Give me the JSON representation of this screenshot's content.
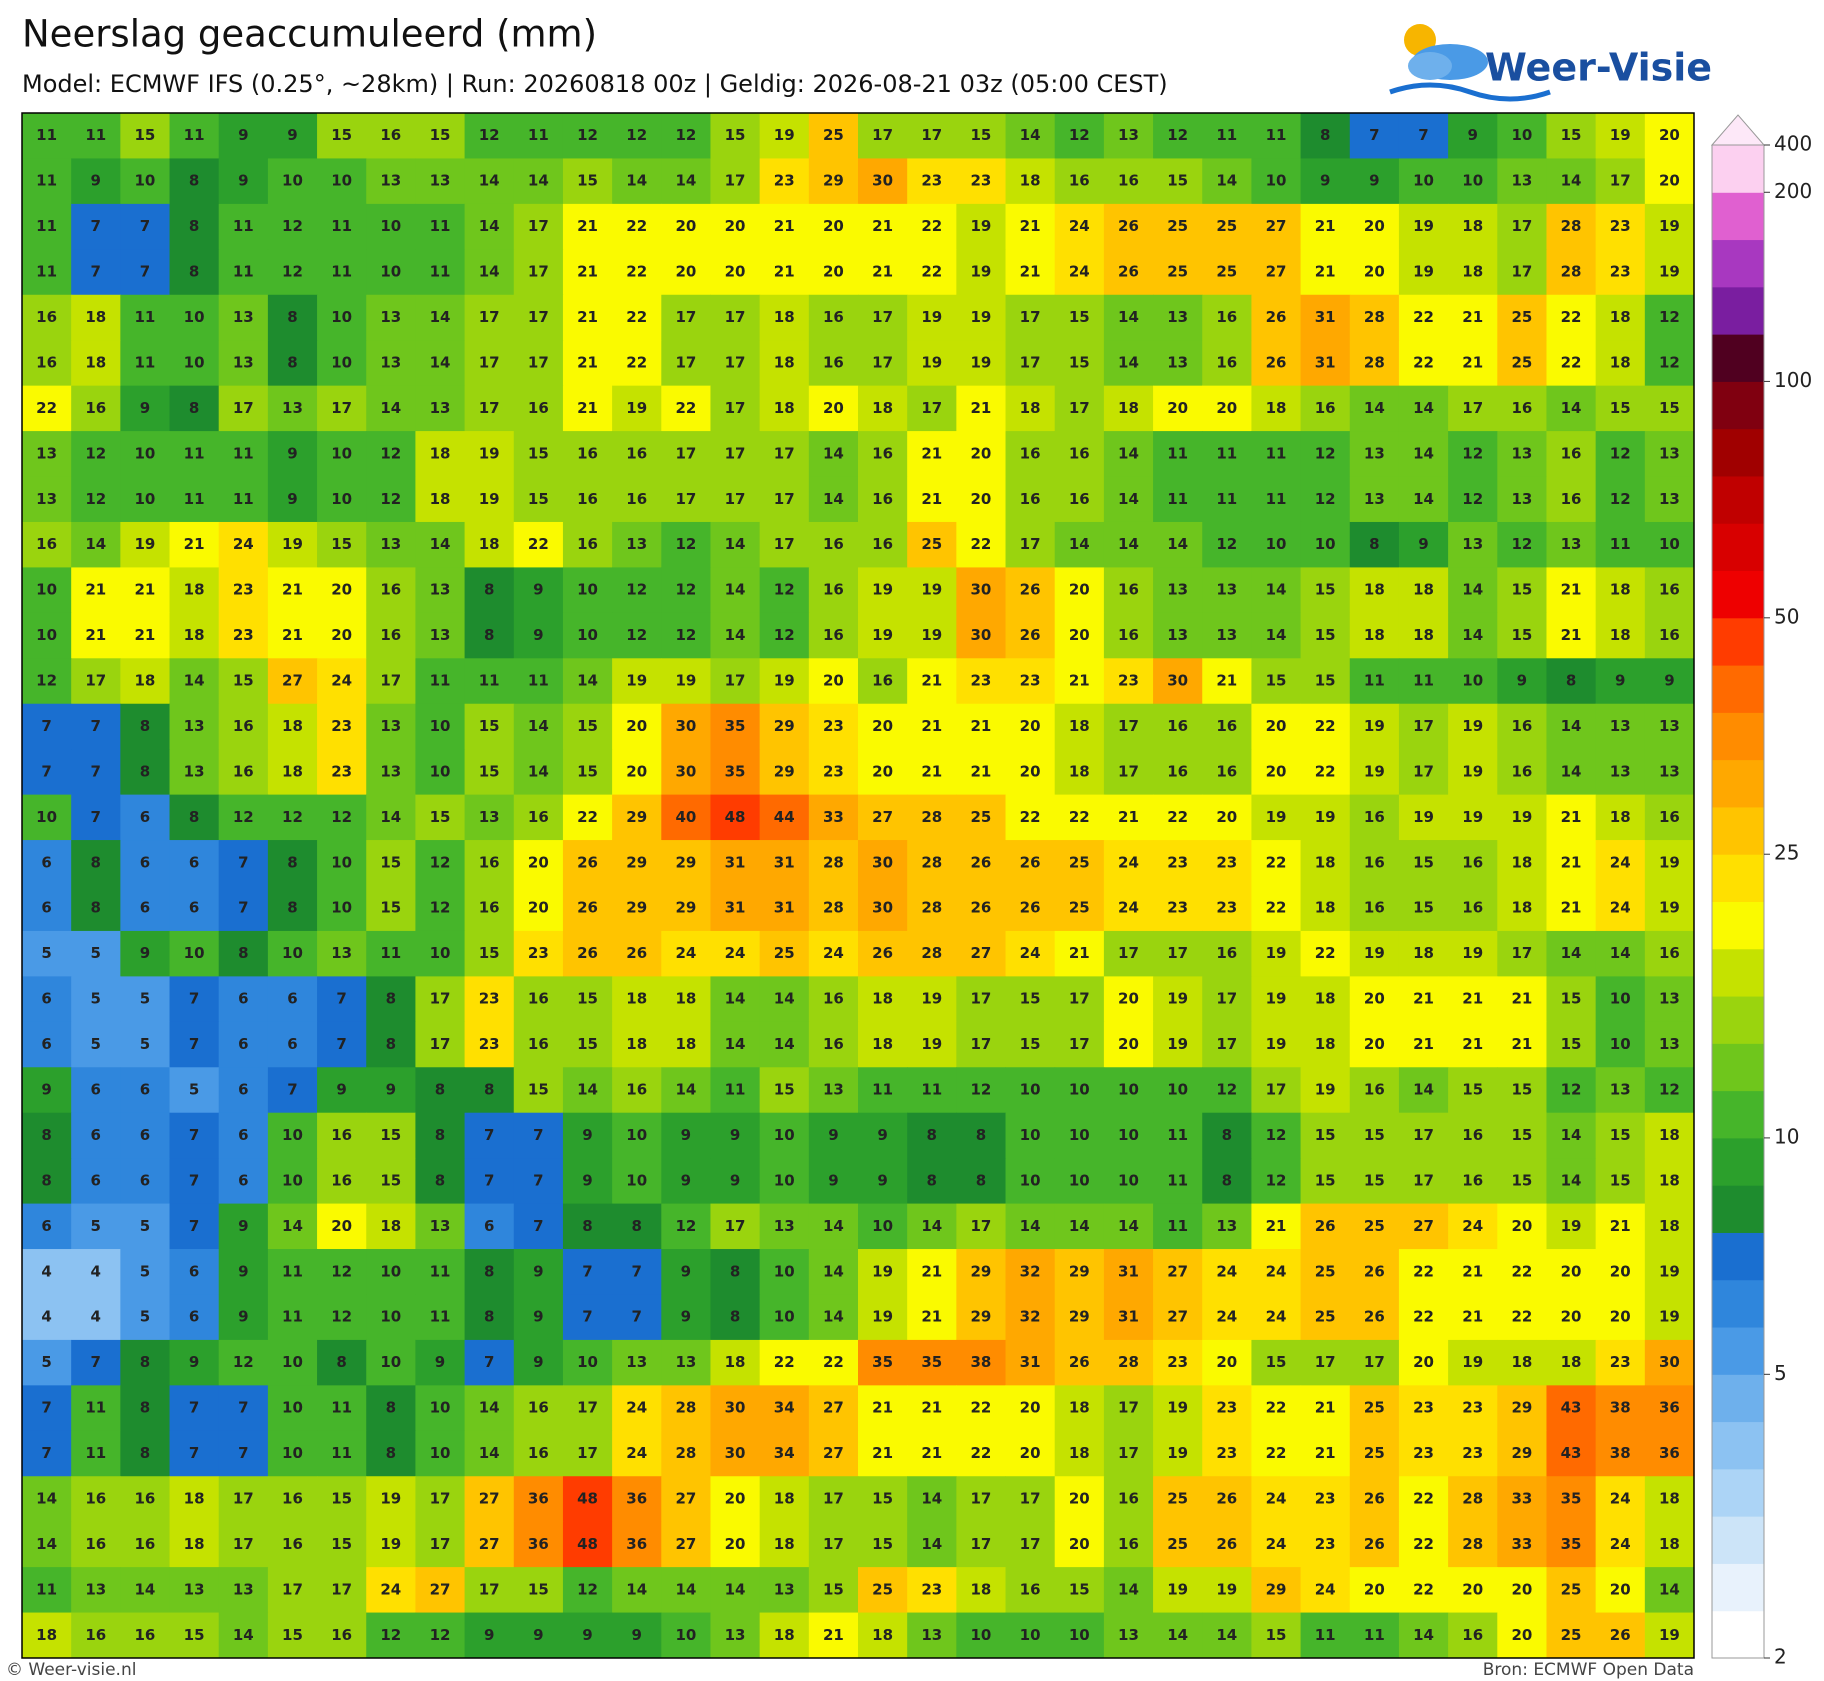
{
  "header": {
    "title": "Neerslag geaccumuleerd (mm)",
    "subtitle": "Model: ECMWF IFS (0.25°, ~28km)  |  Run: 20260818 00z  |  Geldig: 2026-08-21 03z (05:00 CEST)",
    "logo": "Weer-Visie"
  },
  "grid": {
    "rows": [
      [
        11,
        11,
        15,
        11,
        9,
        9,
        15,
        16,
        15,
        12,
        11,
        12,
        12,
        12,
        15,
        19,
        25,
        17,
        17,
        15,
        14,
        12,
        13,
        12,
        11,
        11,
        8,
        7,
        7,
        9,
        10,
        15,
        19,
        20
      ],
      [
        11,
        9,
        10,
        8,
        9,
        10,
        10,
        13,
        13,
        14,
        14,
        15,
        14,
        14,
        17,
        23,
        29,
        30,
        23,
        23,
        18,
        16,
        16,
        15,
        14,
        10,
        9,
        9,
        10,
        10,
        13,
        14,
        17,
        20
      ],
      [
        11,
        7,
        7,
        8,
        11,
        12,
        11,
        10,
        11,
        14,
        17,
        21,
        22,
        20,
        20,
        21,
        20,
        21,
        22,
        19,
        21,
        24,
        26,
        25,
        25,
        27,
        21,
        20,
        19,
        18,
        17,
        28,
        23,
        19
      ],
      [
        11,
        7,
        7,
        8,
        11,
        12,
        11,
        10,
        11,
        14,
        17,
        21,
        22,
        20,
        20,
        21,
        20,
        21,
        22,
        19,
        21,
        24,
        26,
        25,
        25,
        27,
        21,
        20,
        19,
        18,
        17,
        28,
        23,
        19
      ],
      [
        16,
        18,
        11,
        10,
        13,
        8,
        10,
        13,
        14,
        17,
        17,
        21,
        22,
        17,
        17,
        18,
        16,
        17,
        19,
        19,
        17,
        15,
        14,
        13,
        16,
        26,
        31,
        28,
        22,
        21,
        25,
        22,
        18,
        12
      ],
      [
        16,
        18,
        11,
        10,
        13,
        8,
        10,
        13,
        14,
        17,
        17,
        21,
        22,
        17,
        17,
        18,
        16,
        17,
        19,
        19,
        17,
        15,
        14,
        13,
        16,
        26,
        31,
        28,
        22,
        21,
        25,
        22,
        18,
        12
      ],
      [
        22,
        16,
        9,
        8,
        17,
        13,
        17,
        14,
        13,
        17,
        16,
        21,
        19,
        22,
        17,
        18,
        20,
        18,
        17,
        21,
        18,
        17,
        18,
        20,
        20,
        18,
        16,
        14,
        14,
        17,
        16,
        14,
        15,
        15
      ],
      [
        13,
        12,
        10,
        11,
        11,
        9,
        10,
        12,
        18,
        19,
        15,
        16,
        16,
        17,
        17,
        17,
        14,
        16,
        21,
        20,
        16,
        16,
        14,
        11,
        11,
        11,
        12,
        13,
        14,
        12,
        13,
        16,
        12,
        13
      ],
      [
        13,
        12,
        10,
        11,
        11,
        9,
        10,
        12,
        18,
        19,
        15,
        16,
        16,
        17,
        17,
        17,
        14,
        16,
        21,
        20,
        16,
        16,
        14,
        11,
        11,
        11,
        12,
        13,
        14,
        12,
        13,
        16,
        12,
        13
      ],
      [
        16,
        14,
        19,
        21,
        24,
        19,
        15,
        13,
        14,
        18,
        22,
        16,
        13,
        12,
        14,
        17,
        16,
        16,
        25,
        22,
        17,
        14,
        14,
        14,
        12,
        10,
        10,
        8,
        9,
        13,
        12,
        13,
        11,
        10
      ],
      [
        10,
        21,
        21,
        18,
        23,
        21,
        20,
        16,
        13,
        8,
        9,
        10,
        12,
        12,
        14,
        12,
        16,
        19,
        19,
        30,
        26,
        20,
        16,
        13,
        13,
        14,
        15,
        18,
        18,
        14,
        15,
        21,
        18,
        16
      ],
      [
        10,
        21,
        21,
        18,
        23,
        21,
        20,
        16,
        13,
        8,
        9,
        10,
        12,
        12,
        14,
        12,
        16,
        19,
        19,
        30,
        26,
        20,
        16,
        13,
        13,
        14,
        15,
        18,
        18,
        14,
        15,
        21,
        18,
        16
      ],
      [
        12,
        17,
        18,
        14,
        15,
        27,
        24,
        17,
        11,
        11,
        11,
        14,
        19,
        19,
        17,
        19,
        20,
        16,
        21,
        23,
        23,
        21,
        23,
        30,
        21,
        15,
        15,
        11,
        11,
        10,
        9,
        8,
        9,
        9
      ],
      [
        7,
        7,
        8,
        13,
        16,
        18,
        23,
        13,
        10,
        15,
        14,
        15,
        20,
        30,
        35,
        29,
        23,
        20,
        21,
        21,
        20,
        18,
        17,
        16,
        16,
        20,
        22,
        19,
        17,
        19,
        16,
        14,
        13,
        13
      ],
      [
        7,
        7,
        8,
        13,
        16,
        18,
        23,
        13,
        10,
        15,
        14,
        15,
        20,
        30,
        35,
        29,
        23,
        20,
        21,
        21,
        20,
        18,
        17,
        16,
        16,
        20,
        22,
        19,
        17,
        19,
        16,
        14,
        13,
        13
      ],
      [
        10,
        7,
        6,
        8,
        12,
        12,
        12,
        14,
        15,
        13,
        16,
        22,
        29,
        40,
        48,
        44,
        33,
        27,
        28,
        25,
        22,
        22,
        21,
        22,
        20,
        19,
        19,
        16,
        19,
        19,
        19,
        21,
        18,
        16
      ],
      [
        6,
        8,
        6,
        6,
        7,
        8,
        10,
        15,
        12,
        16,
        20,
        26,
        29,
        29,
        31,
        31,
        28,
        30,
        28,
        26,
        26,
        25,
        24,
        23,
        23,
        22,
        18,
        16,
        15,
        16,
        18,
        21,
        24,
        19
      ],
      [
        6,
        8,
        6,
        6,
        7,
        8,
        10,
        15,
        12,
        16,
        20,
        26,
        29,
        29,
        31,
        31,
        28,
        30,
        28,
        26,
        26,
        25,
        24,
        23,
        23,
        22,
        18,
        16,
        15,
        16,
        18,
        21,
        24,
        19
      ],
      [
        5,
        5,
        9,
        10,
        8,
        10,
        13,
        11,
        10,
        15,
        23,
        26,
        26,
        24,
        24,
        25,
        24,
        26,
        28,
        27,
        24,
        21,
        17,
        17,
        16,
        19,
        22,
        19,
        18,
        19,
        17,
        14,
        14,
        16
      ],
      [
        6,
        5,
        5,
        7,
        6,
        6,
        7,
        8,
        17,
        23,
        16,
        15,
        18,
        18,
        14,
        14,
        16,
        18,
        19,
        17,
        15,
        17,
        20,
        19,
        17,
        19,
        18,
        20,
        21,
        21,
        21,
        15,
        10,
        13
      ],
      [
        6,
        5,
        5,
        7,
        6,
        6,
        7,
        8,
        17,
        23,
        16,
        15,
        18,
        18,
        14,
        14,
        16,
        18,
        19,
        17,
        15,
        17,
        20,
        19,
        17,
        19,
        18,
        20,
        21,
        21,
        21,
        15,
        10,
        13
      ],
      [
        9,
        6,
        6,
        5,
        6,
        7,
        9,
        9,
        8,
        8,
        15,
        14,
        16,
        14,
        11,
        15,
        13,
        11,
        11,
        12,
        10,
        10,
        10,
        10,
        12,
        17,
        19,
        16,
        14,
        15,
        15,
        12,
        13,
        12
      ],
      [
        8,
        6,
        6,
        7,
        6,
        10,
        16,
        15,
        8,
        7,
        7,
        9,
        10,
        9,
        9,
        10,
        9,
        9,
        8,
        8,
        10,
        10,
        10,
        11,
        8,
        12,
        15,
        15,
        17,
        16,
        15,
        14,
        15,
        18
      ],
      [
        8,
        6,
        6,
        7,
        6,
        10,
        16,
        15,
        8,
        7,
        7,
        9,
        10,
        9,
        9,
        10,
        9,
        9,
        8,
        8,
        10,
        10,
        10,
        11,
        8,
        12,
        15,
        15,
        17,
        16,
        15,
        14,
        15,
        18
      ],
      [
        6,
        5,
        5,
        7,
        9,
        14,
        20,
        18,
        13,
        6,
        7,
        8,
        8,
        12,
        17,
        13,
        14,
        10,
        14,
        17,
        14,
        14,
        14,
        11,
        13,
        21,
        26,
        25,
        27,
        24,
        20,
        19,
        21,
        18
      ],
      [
        4,
        4,
        5,
        6,
        9,
        11,
        12,
        10,
        11,
        8,
        9,
        7,
        7,
        9,
        8,
        10,
        14,
        19,
        21,
        29,
        32,
        29,
        31,
        27,
        24,
        24,
        25,
        26,
        22,
        21,
        22,
        20,
        20,
        19
      ],
      [
        4,
        4,
        5,
        6,
        9,
        11,
        12,
        10,
        11,
        8,
        9,
        7,
        7,
        9,
        8,
        10,
        14,
        19,
        21,
        29,
        32,
        29,
        31,
        27,
        24,
        24,
        25,
        26,
        22,
        21,
        22,
        20,
        20,
        19
      ],
      [
        5,
        7,
        8,
        9,
        12,
        10,
        8,
        10,
        9,
        7,
        9,
        10,
        13,
        13,
        18,
        22,
        22,
        35,
        35,
        38,
        31,
        26,
        28,
        23,
        20,
        15,
        17,
        17,
        20,
        19,
        18,
        18,
        23,
        30
      ],
      [
        7,
        11,
        8,
        7,
        7,
        10,
        11,
        8,
        10,
        14,
        16,
        17,
        24,
        28,
        30,
        34,
        27,
        21,
        21,
        22,
        20,
        18,
        17,
        19,
        23,
        22,
        21,
        25,
        23,
        23,
        29,
        43,
        38,
        36
      ],
      [
        7,
        11,
        8,
        7,
        7,
        10,
        11,
        8,
        10,
        14,
        16,
        17,
        24,
        28,
        30,
        34,
        27,
        21,
        21,
        22,
        20,
        18,
        17,
        19,
        23,
        22,
        21,
        25,
        23,
        23,
        29,
        43,
        38,
        36
      ],
      [
        14,
        16,
        16,
        18,
        17,
        16,
        15,
        19,
        17,
        27,
        36,
        48,
        36,
        27,
        20,
        18,
        17,
        15,
        14,
        17,
        17,
        20,
        16,
        25,
        26,
        24,
        23,
        26,
        22,
        28,
        33,
        35,
        24,
        18
      ],
      [
        14,
        16,
        16,
        18,
        17,
        16,
        15,
        19,
        17,
        27,
        36,
        48,
        36,
        27,
        20,
        18,
        17,
        15,
        14,
        17,
        17,
        20,
        16,
        25,
        26,
        24,
        23,
        26,
        22,
        28,
        33,
        35,
        24,
        18
      ],
      [
        11,
        13,
        14,
        13,
        13,
        17,
        17,
        24,
        27,
        17,
        15,
        12,
        14,
        14,
        14,
        13,
        15,
        25,
        23,
        18,
        16,
        15,
        14,
        19,
        19,
        29,
        24,
        20,
        22,
        20,
        20,
        25,
        20,
        14
      ],
      [
        18,
        16,
        16,
        15,
        14,
        15,
        16,
        12,
        12,
        9,
        9,
        9,
        9,
        10,
        13,
        18,
        21,
        18,
        13,
        10,
        10,
        10,
        13,
        14,
        14,
        15,
        11,
        11,
        14,
        16,
        20,
        25,
        26,
        19
      ]
    ]
  },
  "colorbar": {
    "ticks": [
      2,
      5,
      10,
      25,
      50,
      100,
      200,
      400
    ],
    "colors": [
      "#ffffff",
      "#e8f2fc",
      "#cce4f8",
      "#acd4f6",
      "#8cc2f2",
      "#6eb0ec",
      "#4a9ae6",
      "#2f86dc",
      "#1a6fd0",
      "#1e8c2e",
      "#2ca02c",
      "#46b52a",
      "#6fc61c",
      "#9ad40e",
      "#c5e200",
      "#fafa00",
      "#ffe000",
      "#ffc400",
      "#ffa800",
      "#ff8c00",
      "#ff6a00",
      "#ff3c00",
      "#ee0000",
      "#d80000",
      "#c00000",
      "#a00000",
      "#800010",
      "#500020",
      "#7a1ea0",
      "#a838c0",
      "#e060d0",
      "#fcd0f0"
    ],
    "extend_color": "#fde8f8"
  },
  "footer": {
    "credit": "© Weer-visie.nl",
    "source": "Bron: ECMWF Open Data"
  }
}
